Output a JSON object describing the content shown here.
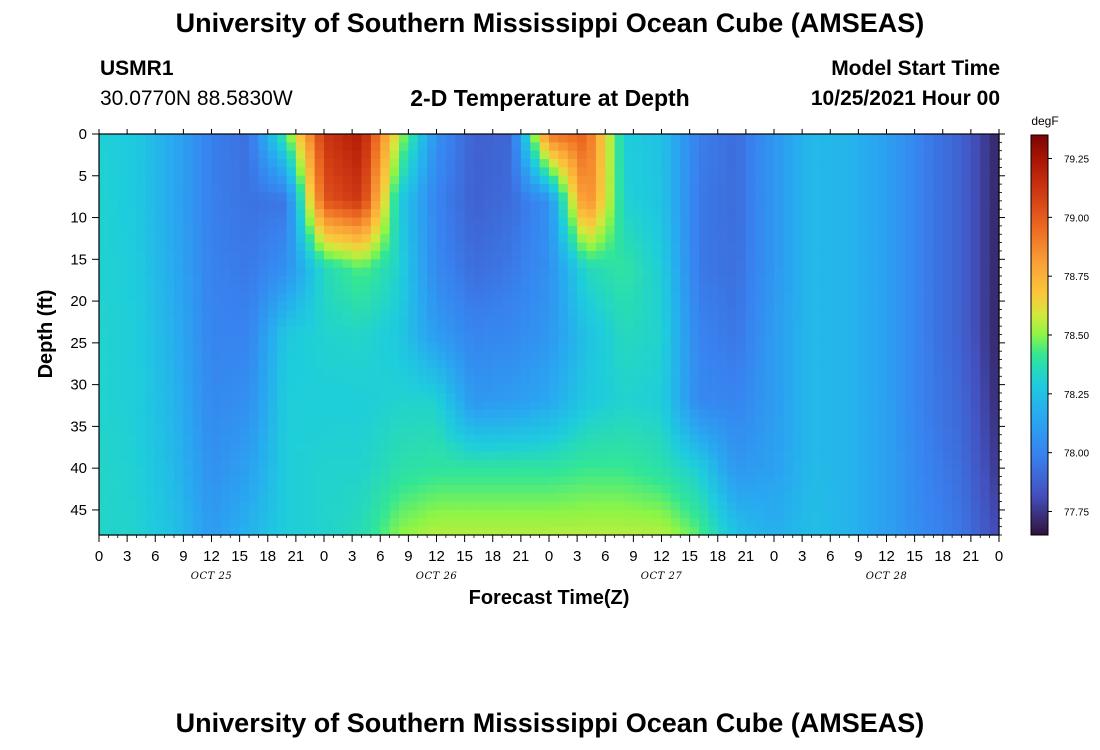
{
  "header": {
    "title": "University of Southern Mississippi Ocean Cube (AMSEAS)",
    "station": "USMR1",
    "coords": "30.0770N  88.5830W",
    "chart_title": "2-D Temperature at Depth",
    "model_start_label": "Model Start Time",
    "model_start_value": "10/25/2021 Hour 00"
  },
  "footer": {
    "title": "University of Southern Mississippi Ocean Cube (AMSEAS)"
  },
  "chart_data": {
    "type": "heatmap",
    "xlabel": "Forecast Time(Z)",
    "ylabel": "Depth (ft)",
    "x_hours_range": [
      0,
      96
    ],
    "ylim": [
      0,
      48
    ],
    "y_inverted": true,
    "x_ticks": [
      "0",
      "3",
      "6",
      "9",
      "12",
      "15",
      "18",
      "21",
      "0",
      "3",
      "6",
      "9",
      "12",
      "15",
      "18",
      "21",
      "0",
      "3",
      "6",
      "9",
      "12",
      "15",
      "18",
      "21",
      "0",
      "3",
      "6",
      "9",
      "12",
      "15",
      "18",
      "21",
      "0"
    ],
    "y_ticks": [
      0,
      5,
      10,
      15,
      20,
      25,
      30,
      35,
      40,
      45
    ],
    "day_labels": [
      "OCT 25",
      "OCT 26",
      "OCT 27",
      "OCT 28"
    ],
    "colorbar": {
      "unit": "degF",
      "range": [
        77.65,
        79.35
      ],
      "ticks": [
        "79.25",
        "79.00",
        "78.75",
        "78.50",
        "78.25",
        "78.00",
        "77.75"
      ],
      "tick_values": [
        79.25,
        79.0,
        78.75,
        78.5,
        78.25,
        78.0,
        77.75
      ]
    },
    "depth_levels": [
      0,
      8,
      16,
      24,
      32,
      40,
      48
    ],
    "time_hours": [
      0,
      4,
      8,
      12,
      16,
      20,
      24,
      28,
      32,
      36,
      40,
      44,
      48,
      52,
      56,
      60,
      64,
      68,
      72,
      76,
      80,
      84,
      88,
      92,
      96
    ],
    "values": [
      [
        78.31,
        78.28,
        78.15,
        77.98,
        77.93,
        78.45,
        79.12,
        79.22,
        78.55,
        78.05,
        77.88,
        77.9,
        78.92,
        78.98,
        78.3,
        78.25,
        77.98,
        77.92,
        78.08,
        78.22,
        78.2,
        78.12,
        77.98,
        77.88,
        77.7
      ],
      [
        78.32,
        78.28,
        78.15,
        77.98,
        77.94,
        77.95,
        79.02,
        79.12,
        78.3,
        78.0,
        77.88,
        77.92,
        78.05,
        78.9,
        78.32,
        78.26,
        77.96,
        77.92,
        78.08,
        78.22,
        78.2,
        78.12,
        77.98,
        77.88,
        77.7
      ],
      [
        78.32,
        78.29,
        78.16,
        77.99,
        77.96,
        78.05,
        78.35,
        78.45,
        78.32,
        78.02,
        77.92,
        77.96,
        78.05,
        78.35,
        78.4,
        78.3,
        77.96,
        77.93,
        78.08,
        78.22,
        78.2,
        78.12,
        77.98,
        77.88,
        77.7
      ],
      [
        78.32,
        78.3,
        78.18,
        78.0,
        78.0,
        78.28,
        78.32,
        78.33,
        78.28,
        78.1,
        78.0,
        78.02,
        78.08,
        78.25,
        78.35,
        78.32,
        78.0,
        77.95,
        78.1,
        78.22,
        78.2,
        78.12,
        77.98,
        77.88,
        77.7
      ],
      [
        78.32,
        78.3,
        78.2,
        78.02,
        78.05,
        78.3,
        78.3,
        78.3,
        78.32,
        78.32,
        78.08,
        78.1,
        78.15,
        78.28,
        78.32,
        78.3,
        78.02,
        78.0,
        78.1,
        78.22,
        78.2,
        78.12,
        77.98,
        77.9,
        77.72
      ],
      [
        78.33,
        78.31,
        78.22,
        78.05,
        78.12,
        78.3,
        78.32,
        78.32,
        78.38,
        78.4,
        78.4,
        78.4,
        78.4,
        78.42,
        78.42,
        78.38,
        78.3,
        78.08,
        78.12,
        78.22,
        78.2,
        78.12,
        78.0,
        77.92,
        77.75
      ],
      [
        78.33,
        78.32,
        78.25,
        78.1,
        78.2,
        78.3,
        78.32,
        78.36,
        78.5,
        78.55,
        78.55,
        78.55,
        78.55,
        78.55,
        78.55,
        78.55,
        78.45,
        78.25,
        78.18,
        78.24,
        78.2,
        78.12,
        78.02,
        77.95,
        77.8
      ]
    ]
  }
}
